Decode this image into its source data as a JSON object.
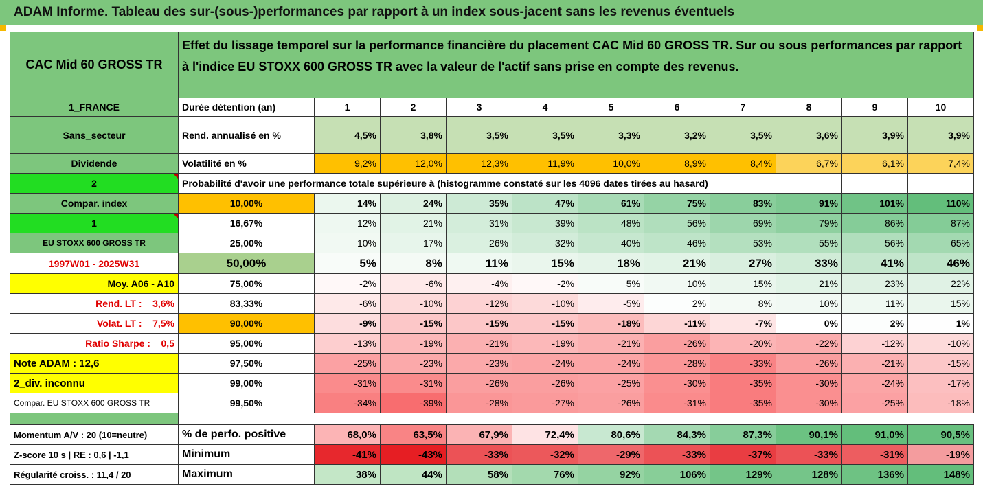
{
  "title": "ADAM Informe. Tableau des sur-(sous-)performances par rapport à un index sous-jacent sans les revenus éventuels",
  "header": {
    "asset": "CAC Mid 60 GROSS TR",
    "description": "Effet du lissage temporel sur la performance financière du placement CAC Mid 60 GROSS TR. Sur ou sous performances par rapport à l'indice EU STOXX 600 GROSS TR avec la valeur de l'actif sans prise en compte des revenus."
  },
  "left_labels": {
    "country": "1_FRANCE",
    "sector": "Sans_secteur",
    "dividend": "Dividende",
    "two": "2",
    "compar_index": "Compar. index",
    "one": "1",
    "index_name": "EU STOXX 600 GROSS TR",
    "period": "1997W01 - 2025W31",
    "moy": "Moy. A06 - A10",
    "rend_lt": "Rend. LT :    3,6%",
    "volat_lt": "Volat. LT :    7,5%",
    "sharpe": "Ratio Sharpe :    0,5",
    "note": "Note ADAM : 12,6",
    "div_unknown": "2_div. inconnu",
    "compar_index_full": "Compar. EU STOXX 600 GROSS TR",
    "momentum": "Momentum A/V : 20 (10=neutre)",
    "zscore": "Z-score 10 s  |  RE : 0,6  |  -1,1",
    "regularity": "Régularité croiss. : 11,4 / 20"
  },
  "stats": {
    "duration_label": "Durée détention (an)",
    "years": [
      "1",
      "2",
      "3",
      "4",
      "5",
      "6",
      "7",
      "8",
      "9",
      "10"
    ],
    "rend_label": "Rend. annualisé en %",
    "rend": [
      "4,5%",
      "3,8%",
      "3,5%",
      "3,5%",
      "3,3%",
      "3,2%",
      "3,5%",
      "3,6%",
      "3,9%",
      "3,9%"
    ],
    "vol_label": "Volatilité en %",
    "vol": [
      "9,2%",
      "12,0%",
      "12,3%",
      "11,9%",
      "10,0%",
      "8,9%",
      "8,4%",
      "6,7%",
      "6,1%",
      "7,4%"
    ],
    "prob_label": "Probabilité d'avoir une performance totale supérieure à (histogramme constaté sur les 4096 dates tirées au hasard)"
  },
  "quantiles": [
    {
      "q": "10,00%",
      "values": [
        "14%",
        "24%",
        "35%",
        "47%",
        "61%",
        "75%",
        "83%",
        "91%",
        "101%",
        "110%"
      ]
    },
    {
      "q": "16,67%",
      "values": [
        "12%",
        "21%",
        "31%",
        "39%",
        "48%",
        "56%",
        "69%",
        "79%",
        "86%",
        "87%"
      ]
    },
    {
      "q": "25,00%",
      "values": [
        "10%",
        "17%",
        "26%",
        "32%",
        "40%",
        "46%",
        "53%",
        "55%",
        "56%",
        "65%"
      ]
    },
    {
      "q": "50,00%",
      "values": [
        "5%",
        "8%",
        "11%",
        "15%",
        "18%",
        "21%",
        "27%",
        "33%",
        "41%",
        "46%"
      ]
    },
    {
      "q": "75,00%",
      "values": [
        "-2%",
        "-6%",
        "-4%",
        "-2%",
        "5%",
        "10%",
        "15%",
        "21%",
        "23%",
        "22%"
      ]
    },
    {
      "q": "83,33%",
      "values": [
        "-6%",
        "-10%",
        "-12%",
        "-10%",
        "-5%",
        "2%",
        "8%",
        "10%",
        "11%",
        "15%"
      ]
    },
    {
      "q": "90,00%",
      "values": [
        "-9%",
        "-15%",
        "-15%",
        "-15%",
        "-18%",
        "-11%",
        "-7%",
        "0%",
        "2%",
        "1%"
      ]
    },
    {
      "q": "95,00%",
      "values": [
        "-13%",
        "-19%",
        "-21%",
        "-19%",
        "-21%",
        "-26%",
        "-20%",
        "-22%",
        "-12%",
        "-10%"
      ]
    },
    {
      "q": "97,50%",
      "values": [
        "-25%",
        "-23%",
        "-23%",
        "-24%",
        "-24%",
        "-28%",
        "-33%",
        "-26%",
        "-21%",
        "-15%"
      ]
    },
    {
      "q": "99,00%",
      "values": [
        "-31%",
        "-31%",
        "-26%",
        "-26%",
        "-25%",
        "-30%",
        "-35%",
        "-30%",
        "-24%",
        "-17%"
      ]
    },
    {
      "q": "99,50%",
      "values": [
        "-34%",
        "-39%",
        "-28%",
        "-27%",
        "-26%",
        "-31%",
        "-35%",
        "-30%",
        "-25%",
        "-18%"
      ]
    }
  ],
  "bottom": {
    "pos_label": "% de perfo. positive",
    "pos": [
      "68,0%",
      "63,5%",
      "67,9%",
      "72,4%",
      "80,6%",
      "84,3%",
      "87,3%",
      "90,1%",
      "91,0%",
      "90,5%"
    ],
    "min_label": "Minimum",
    "min": [
      "-41%",
      "-43%",
      "-33%",
      "-32%",
      "-29%",
      "-33%",
      "-37%",
      "-33%",
      "-31%",
      "-19%"
    ],
    "max_label": "Maximum",
    "max": [
      "38%",
      "44%",
      "58%",
      "76%",
      "92%",
      "106%",
      "129%",
      "128%",
      "136%",
      "148%"
    ]
  },
  "colors": {
    "banner_green": "#7dc67d",
    "label_green": "#7dc67d",
    "bright_green": "#22dd22",
    "orange": "#ffc000",
    "yellow": "#ffff00",
    "red_text": "#e00000"
  }
}
